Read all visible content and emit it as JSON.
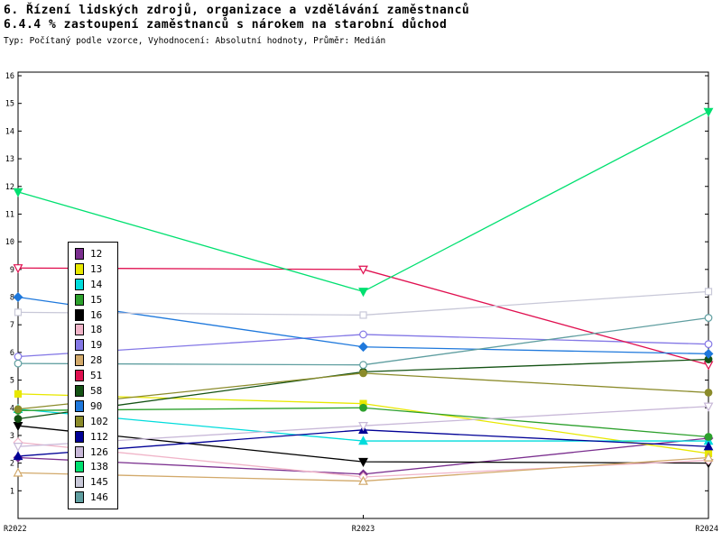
{
  "header": {
    "title_line1": "6. Řízení lidských zdrojů, organizace a vzdělávání zaměstnanců",
    "title_line2": "6.4.4 % zastoupení zaměstnanců s nárokem na starobní důchod",
    "subtitle": "Typ: Počítaný podle vzorce, Vyhodnocení: Absolutní hodnoty, Průměr: Medián"
  },
  "chart_data": {
    "type": "line",
    "categories": [
      "R2022",
      "R2023",
      "R2024"
    ],
    "ylim": [
      0,
      16
    ],
    "ytick_step": 1,
    "grid": false,
    "legend_position": "left-inside",
    "series": [
      {
        "name": "12",
        "color": "#7a2e8e",
        "marker": "diamond",
        "open": false,
        "values": [
          2.2,
          1.6,
          2.9
        ]
      },
      {
        "name": "13",
        "color": "#e8e800",
        "marker": "square",
        "open": false,
        "values": [
          4.5,
          4.15,
          2.35
        ]
      },
      {
        "name": "14",
        "color": "#00dcdc",
        "marker": "triangle-up",
        "open": false,
        "values": [
          3.95,
          2.8,
          2.8
        ]
      },
      {
        "name": "15",
        "color": "#2ca02c",
        "marker": "circle",
        "open": false,
        "values": [
          3.9,
          4.0,
          2.95
        ]
      },
      {
        "name": "16",
        "color": "#000000",
        "marker": "triangle-down",
        "open": false,
        "values": [
          3.35,
          2.05,
          2.0
        ]
      },
      {
        "name": "18",
        "color": "#f0b4c8",
        "marker": "diamond",
        "open": true,
        "values": [
          2.75,
          1.5,
          2.1
        ]
      },
      {
        "name": "19",
        "color": "#8478e6",
        "marker": "circle",
        "open": true,
        "values": [
          5.85,
          6.65,
          6.3
        ]
      },
      {
        "name": "28",
        "color": "#d2a96a",
        "marker": "triangle-up",
        "open": true,
        "values": [
          1.65,
          1.35,
          2.2
        ]
      },
      {
        "name": "51",
        "color": "#e01050",
        "marker": "triangle-down",
        "open": true,
        "values": [
          9.05,
          9.0,
          5.55
        ]
      },
      {
        "name": "58",
        "color": "#145214",
        "marker": "circle",
        "open": false,
        "values": [
          3.6,
          5.3,
          5.75
        ]
      },
      {
        "name": "90",
        "color": "#1e78dc",
        "marker": "diamond",
        "open": false,
        "values": [
          8.0,
          6.2,
          5.95
        ]
      },
      {
        "name": "102",
        "color": "#8b8b2a",
        "marker": "circle",
        "open": false,
        "values": [
          3.95,
          5.25,
          4.55
        ]
      },
      {
        "name": "112",
        "color": "#000096",
        "marker": "triangle-up",
        "open": false,
        "values": [
          2.25,
          3.2,
          2.6
        ]
      },
      {
        "name": "126",
        "color": "#c8b8d8",
        "marker": "triangle-down",
        "open": true,
        "values": [
          2.6,
          3.35,
          4.05
        ]
      },
      {
        "name": "138",
        "color": "#00e070",
        "marker": "triangle-down",
        "open": false,
        "values": [
          11.8,
          8.2,
          14.7
        ]
      },
      {
        "name": "145",
        "color": "#c8c8d8",
        "marker": "square",
        "open": true,
        "values": [
          7.45,
          7.35,
          8.2
        ]
      },
      {
        "name": "146",
        "color": "#5f9ea0",
        "marker": "circle",
        "open": true,
        "values": [
          5.6,
          5.55,
          7.25
        ]
      }
    ]
  }
}
